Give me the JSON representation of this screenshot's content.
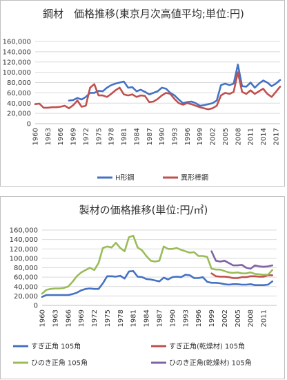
{
  "colors": {
    "blue": "#4472c4",
    "red": "#c0504d",
    "green": "#9bbb59",
    "purple": "#8064a2",
    "grid": "#d9d9d9"
  },
  "chart_data": [
    {
      "type": "line",
      "title": "鋼材　価格推移(東京月次高値平均;単位:円)",
      "xlabel": "",
      "ylabel": "",
      "ylim": [
        0,
        160000
      ],
      "yticks": [
        "0",
        "20,000",
        "40,000",
        "60,000",
        "80,000",
        "100,000",
        "120,000",
        "140,000",
        "160,000"
      ],
      "xticks": [
        "1960",
        "1963",
        "1966",
        "1969",
        "1972",
        "1975",
        "1978",
        "1981",
        "1984",
        "1987",
        "1990",
        "1993",
        "1996",
        "1999",
        "2002",
        "2005",
        "2008",
        "2011",
        "2014",
        "2017"
      ],
      "xlim": [
        1960,
        2018
      ],
      "grid": true,
      "legend_position": "bottom",
      "series": [
        {
          "name": "H形鋼",
          "color": "#4472c4",
          "x": [
            1968,
            1969,
            1970,
            1971,
            1972,
            1973,
            1974,
            1975,
            1976,
            1977,
            1978,
            1979,
            1980,
            1981,
            1982,
            1983,
            1984,
            1985,
            1986,
            1987,
            1988,
            1989,
            1990,
            1991,
            1992,
            1993,
            1994,
            1995,
            1996,
            1997,
            1998,
            1999,
            2000,
            2001,
            2002,
            2003,
            2004,
            2005,
            2006,
            2007,
            2008,
            2009,
            2010,
            2011,
            2012,
            2013,
            2014,
            2015,
            2016,
            2017,
            2018
          ],
          "y": [
            45000,
            46000,
            50000,
            47000,
            52000,
            60000,
            60000,
            64000,
            63000,
            70000,
            75000,
            78000,
            80000,
            82000,
            70000,
            71000,
            63000,
            66000,
            62000,
            57000,
            60000,
            63000,
            70000,
            68000,
            60000,
            55000,
            47000,
            40000,
            42000,
            43000,
            40000,
            35000,
            36000,
            38000,
            40000,
            45000,
            75000,
            78000,
            75000,
            78000,
            115000,
            73000,
            72000,
            80000,
            70000,
            78000,
            84000,
            80000,
            73000,
            78000,
            85000
          ]
        },
        {
          "name": "異形棒鋼",
          "color": "#c0504d",
          "x": [
            1960,
            1961,
            1962,
            1963,
            1964,
            1965,
            1966,
            1967,
            1968,
            1969,
            1970,
            1971,
            1972,
            1973,
            1974,
            1975,
            1976,
            1977,
            1978,
            1979,
            1980,
            1981,
            1982,
            1983,
            1984,
            1985,
            1986,
            1987,
            1988,
            1989,
            1990,
            1991,
            1992,
            1993,
            1994,
            1995,
            1996,
            1997,
            1998,
            1999,
            2000,
            2001,
            2002,
            2003,
            2004,
            2005,
            2006,
            2007,
            2008,
            2009,
            2010,
            2011,
            2012,
            2013,
            2014,
            2015,
            2016,
            2017,
            2018
          ],
          "y": [
            38000,
            39000,
            31000,
            31000,
            32000,
            32000,
            33000,
            35000,
            30000,
            36000,
            45000,
            33000,
            35000,
            70000,
            77000,
            55000,
            55000,
            52000,
            58000,
            65000,
            70000,
            57000,
            55000,
            57000,
            52000,
            55000,
            54000,
            42000,
            43000,
            48000,
            55000,
            60000,
            58000,
            48000,
            40000,
            37000,
            40000,
            38000,
            35000,
            32000,
            30000,
            28000,
            30000,
            35000,
            55000,
            60000,
            58000,
            62000,
            100000,
            62000,
            58000,
            65000,
            58000,
            63000,
            68000,
            58000,
            52000,
            62000,
            72000
          ]
        }
      ]
    },
    {
      "type": "line",
      "title": "製材の価格推移(単位:円/㎥)",
      "xlabel": "",
      "ylabel": "",
      "ylim": [
        0,
        160000
      ],
      "yticks": [
        "0",
        "20,000",
        "40,000",
        "60,000",
        "80,000",
        "100,000",
        "120,000",
        "140,000",
        "160,000"
      ],
      "xticks": [
        "1960",
        "1963",
        "1966",
        "1969",
        "1972",
        "1975",
        "1978",
        "1981",
        "1984",
        "1987",
        "1990",
        "1993",
        "1996",
        "1999",
        "2002",
        "2005",
        "2008",
        "2011"
      ],
      "xlim": [
        1960,
        2014
      ],
      "grid": true,
      "legend_position": "bottom",
      "series": [
        {
          "name": "すぎ正角 105角",
          "color": "#4472c4",
          "x": [
            1960,
            1961,
            1962,
            1963,
            1964,
            1965,
            1966,
            1967,
            1968,
            1969,
            1970,
            1971,
            1972,
            1973,
            1974,
            1975,
            1976,
            1977,
            1978,
            1979,
            1980,
            1981,
            1982,
            1983,
            1984,
            1985,
            1986,
            1987,
            1988,
            1989,
            1990,
            1991,
            1992,
            1993,
            1994,
            1995,
            1996,
            1997,
            1998,
            1999,
            2000,
            2001,
            2002,
            2003,
            2004,
            2005,
            2006,
            2007,
            2008,
            2009,
            2010,
            2011,
            2012,
            2013
          ],
          "y": [
            18000,
            22000,
            22000,
            22000,
            22000,
            22000,
            22000,
            24000,
            27000,
            32000,
            35000,
            36000,
            35000,
            35000,
            47000,
            62000,
            62000,
            61000,
            63000,
            57000,
            72000,
            73000,
            61000,
            60000,
            56000,
            55000,
            53000,
            51000,
            59000,
            55000,
            60000,
            61000,
            60000,
            65000,
            64000,
            58000,
            58000,
            60000,
            50000,
            48000,
            48000,
            47000,
            45000,
            44000,
            45000,
            45000,
            44000,
            44000,
            45000,
            43000,
            43000,
            43000,
            44000,
            51000
          ]
        },
        {
          "name": "すぎ正角(乾燥材) 105角",
          "color": "#c0504d",
          "x": [
            1999,
            2000,
            2001,
            2002,
            2003,
            2004,
            2005,
            2006,
            2007,
            2008,
            2009,
            2010,
            2011,
            2012,
            2013
          ],
          "y": [
            68000,
            62000,
            61000,
            61000,
            60000,
            58000,
            58000,
            60000,
            60000,
            62000,
            62000,
            61000,
            61000,
            64000,
            64000
          ]
        },
        {
          "name": "ひのき正角 105角",
          "color": "#9bbb59",
          "x": [
            1960,
            1961,
            1962,
            1963,
            1964,
            1965,
            1966,
            1967,
            1968,
            1969,
            1970,
            1971,
            1972,
            1973,
            1974,
            1975,
            1976,
            1977,
            1978,
            1979,
            1980,
            1981,
            1982,
            1983,
            1984,
            1985,
            1986,
            1987,
            1988,
            1989,
            1990,
            1991,
            1992,
            1993,
            1994,
            1995,
            1996,
            1997,
            1998,
            1999,
            2000,
            2001,
            2002,
            2003,
            2004,
            2005,
            2006,
            2007,
            2008,
            2009,
            2010,
            2011,
            2012,
            2013
          ],
          "y": [
            25000,
            33000,
            35000,
            36000,
            36000,
            37000,
            40000,
            50000,
            62000,
            70000,
            75000,
            80000,
            75000,
            90000,
            122000,
            125000,
            123000,
            133000,
            122000,
            115000,
            145000,
            148000,
            123000,
            117000,
            105000,
            95000,
            93000,
            95000,
            125000,
            120000,
            120000,
            122000,
            118000,
            115000,
            112000,
            113000,
            105000,
            105000,
            103000,
            78000,
            76000,
            76000,
            73000,
            70000,
            69000,
            70000,
            68000,
            68000,
            70000,
            67000,
            66000,
            65000,
            65000,
            75000
          ]
        },
        {
          "name": "ひのき正角(乾燥材) 105角",
          "color": "#8064a2",
          "x": [
            1999,
            2000,
            2001,
            2002,
            2003,
            2004,
            2005,
            2006,
            2007,
            2008,
            2009,
            2010,
            2011,
            2012,
            2013
          ],
          "y": [
            115000,
            95000,
            93000,
            95000,
            90000,
            85000,
            85000,
            86000,
            80000,
            78000,
            85000,
            83000,
            82000,
            83000,
            85000
          ]
        }
      ]
    }
  ]
}
